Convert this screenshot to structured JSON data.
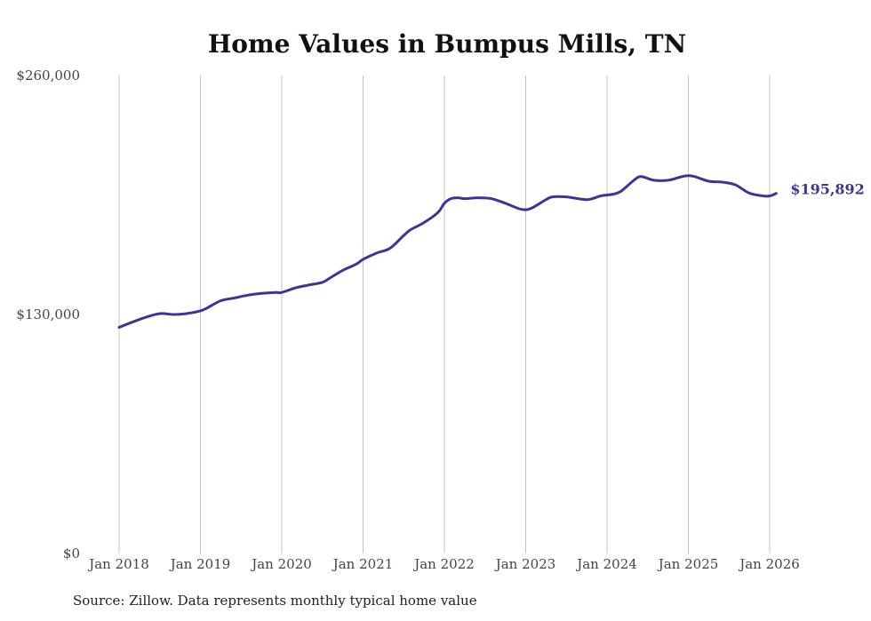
{
  "chart_data": {
    "type": "line",
    "title": "Home Values in Bumpus Mills, TN",
    "source": "Source: Zillow. Data represents monthly typical home value",
    "xlabel": "",
    "ylabel": "",
    "ylim": [
      0,
      260000
    ],
    "xlim": [
      2018.0,
      2026.2
    ],
    "yticks": [
      {
        "value": 0,
        "label": "$0"
      },
      {
        "value": 130000,
        "label": "$130,000"
      },
      {
        "value": 260000,
        "label": "$260,000"
      }
    ],
    "xticks": [
      {
        "value": 2018,
        "label": "Jan 2018"
      },
      {
        "value": 2019,
        "label": "Jan 2019"
      },
      {
        "value": 2020,
        "label": "Jan 2020"
      },
      {
        "value": 2021,
        "label": "Jan 2021"
      },
      {
        "value": 2022,
        "label": "Jan 2022"
      },
      {
        "value": 2023,
        "label": "Jan 2023"
      },
      {
        "value": 2024,
        "label": "Jan 2024"
      },
      {
        "value": 2025,
        "label": "Jan 2025"
      },
      {
        "value": 2026,
        "label": "Jan 2026"
      }
    ],
    "grid": "vertical",
    "line_color": "#3d3594",
    "end_label": "$195,892",
    "series": [
      {
        "name": "Typical home value",
        "x": [
          2018.0,
          2018.17,
          2018.33,
          2018.5,
          2018.67,
          2018.83,
          2019.0,
          2019.08,
          2019.25,
          2019.42,
          2019.58,
          2019.75,
          2019.92,
          2020.0,
          2020.17,
          2020.33,
          2020.5,
          2020.58,
          2020.75,
          2020.92,
          2021.0,
          2021.17,
          2021.33,
          2021.5,
          2021.58,
          2021.75,
          2021.92,
          2022.0,
          2022.08,
          2022.17,
          2022.25,
          2022.42,
          2022.58,
          2022.75,
          2022.92,
          2023.0,
          2023.08,
          2023.25,
          2023.33,
          2023.5,
          2023.75,
          2023.92,
          2024.0,
          2024.08,
          2024.17,
          2024.33,
          2024.42,
          2024.58,
          2024.75,
          2024.92,
          2025.0,
          2025.08,
          2025.25,
          2025.42,
          2025.58,
          2025.75,
          2025.92,
          2026.0,
          2026.08
        ],
        "values": [
          123000,
          126000,
          128500,
          130500,
          130000,
          130500,
          132000,
          133500,
          137500,
          139000,
          140500,
          141500,
          142000,
          142000,
          144500,
          146000,
          147500,
          149500,
          154000,
          157500,
          160000,
          163500,
          166000,
          173000,
          176000,
          180000,
          185500,
          190500,
          193000,
          193500,
          193000,
          193500,
          193000,
          190500,
          187500,
          187000,
          188000,
          192500,
          194000,
          194000,
          192500,
          194500,
          195000,
          195500,
          197000,
          203000,
          205000,
          203000,
          203000,
          205000,
          205500,
          205000,
          202500,
          202000,
          200500,
          196000,
          194500,
          194500,
          195892
        ]
      }
    ]
  }
}
